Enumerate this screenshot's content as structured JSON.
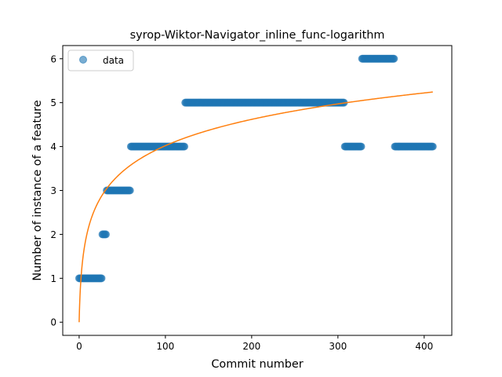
{
  "chart_data": {
    "type": "scatter",
    "title": "syrop-Wiktor-Navigator_inline_func-logarithm",
    "xlabel": "Commit number",
    "ylabel": "Number of instance of a feature",
    "xlim": [
      -19,
      432
    ],
    "ylim": [
      -0.3,
      6.3
    ],
    "xticks": [
      0,
      100,
      200,
      300,
      400
    ],
    "yticks": [
      0,
      1,
      2,
      3,
      4,
      5,
      6
    ],
    "legend": {
      "position": "top-left",
      "entries": [
        "data"
      ]
    },
    "grid": false,
    "series": [
      {
        "name": "data",
        "kind": "points",
        "color": "#1f77b4",
        "segments": [
          {
            "x_from": 0,
            "x_to": 26,
            "y": 1
          },
          {
            "x_from": 27,
            "x_to": 31,
            "y": 2
          },
          {
            "x_from": 32,
            "x_to": 59,
            "y": 3
          },
          {
            "x_from": 60,
            "x_to": 122,
            "y": 4
          },
          {
            "x_from": 123,
            "x_to": 307,
            "y": 5
          },
          {
            "x_from": 308,
            "x_to": 327,
            "y": 4
          },
          {
            "x_from": 328,
            "x_to": 365,
            "y": 6
          },
          {
            "x_from": 366,
            "x_to": 410,
            "y": 4
          }
        ]
      },
      {
        "kind": "fit",
        "function": "logarithm",
        "color": "#ff7f0e",
        "x_range": [
          0,
          410
        ],
        "coefficients": {
          "a": 0.871,
          "b": 0.0
        }
      }
    ]
  }
}
